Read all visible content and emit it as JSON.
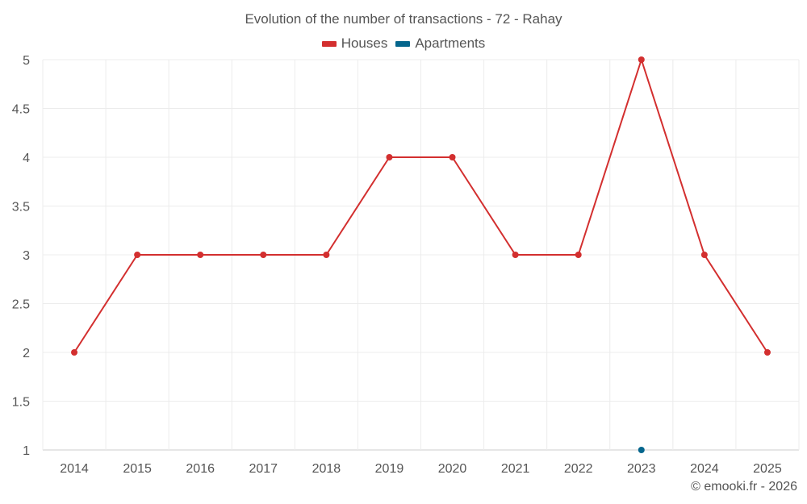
{
  "chart_data": {
    "type": "line",
    "title": "Evolution of the number of transactions - 72 - Rahay",
    "categories": [
      "2014",
      "2015",
      "2016",
      "2017",
      "2018",
      "2019",
      "2020",
      "2021",
      "2022",
      "2023",
      "2024",
      "2025"
    ],
    "y_ticks": [
      "1",
      "1.5",
      "2",
      "2.5",
      "3",
      "3.5",
      "4",
      "4.5",
      "5"
    ],
    "ylim": [
      1,
      5
    ],
    "series": [
      {
        "name": "Houses",
        "color": "#d32f2f",
        "values": [
          2,
          3,
          3,
          3,
          3,
          4,
          4,
          3,
          3,
          5,
          3,
          2
        ]
      },
      {
        "name": "Apartments",
        "color": "#05668d",
        "values": [
          null,
          null,
          null,
          null,
          null,
          null,
          null,
          null,
          null,
          1,
          null,
          null
        ]
      }
    ],
    "grid": true,
    "legend_position": "top-center"
  },
  "credit": "© emooki.fr - 2026"
}
